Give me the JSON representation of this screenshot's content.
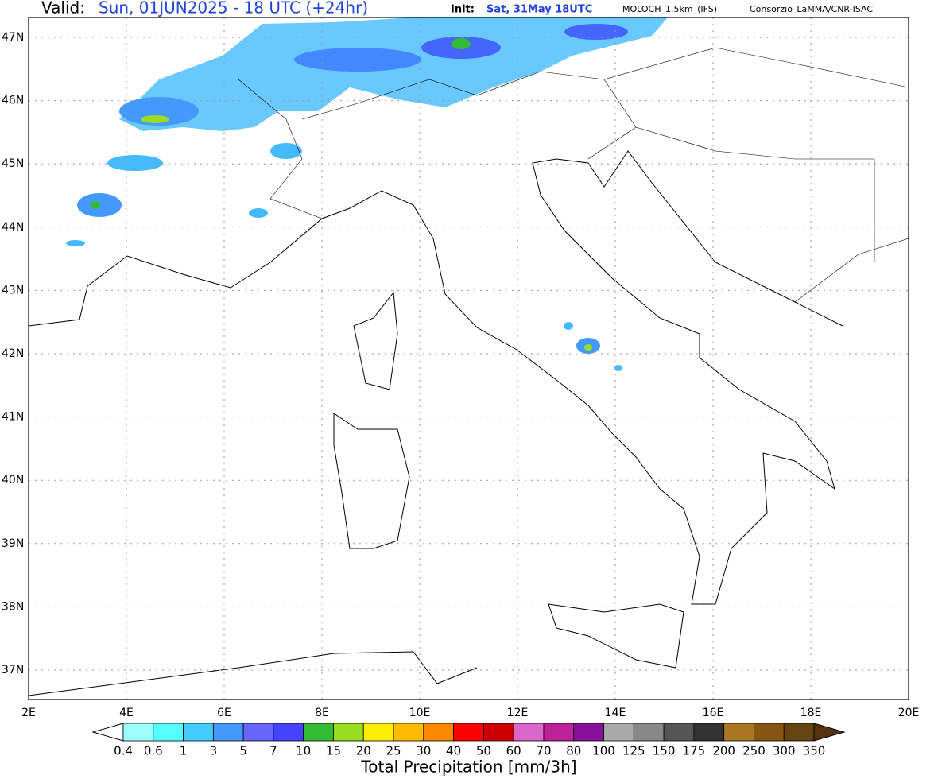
{
  "header": {
    "valid_label": "Valid:",
    "valid": "Sun, 01JUN2025 - 18 UTC (+24hr)",
    "init_label": "Init:",
    "init": "Sat, 31May 18UTC",
    "model": "MOLOCH_1.5km_(IFS)",
    "source": "Consorzio_LaMMA/CNR-ISAC"
  },
  "map": {
    "lon_labels": [
      "2E",
      "4E",
      "6E",
      "8E",
      "10E",
      "12E",
      "14E",
      "16E",
      "18E",
      "20E"
    ],
    "lat_labels": [
      "37N",
      "38N",
      "39N",
      "40N",
      "41N",
      "42N",
      "43N",
      "44N",
      "45N",
      "46N",
      "47N"
    ]
  },
  "colorbar": {
    "labels": [
      "0.4",
      "0.6",
      "1",
      "3",
      "5",
      "7",
      "10",
      "15",
      "20",
      "25",
      "30",
      "40",
      "50",
      "60",
      "70",
      "80",
      "100",
      "125",
      "150",
      "175",
      "200",
      "250",
      "300",
      "350"
    ],
    "colors": [
      "#99ffff",
      "#55ffff",
      "#44ccff",
      "#4499ff",
      "#6666ff",
      "#4444ff",
      "#33bb33",
      "#99dd22",
      "#ffee00",
      "#ffbb00",
      "#ff8800",
      "#ff0000",
      "#cc0000",
      "#dd66cc",
      "#bb2299",
      "#881199",
      "#aaaaaa",
      "#888888",
      "#555555",
      "#333333",
      "#aa7722",
      "#885511",
      "#664411",
      "#553311"
    ],
    "title": "Total Precipitation [mm/3h]"
  }
}
